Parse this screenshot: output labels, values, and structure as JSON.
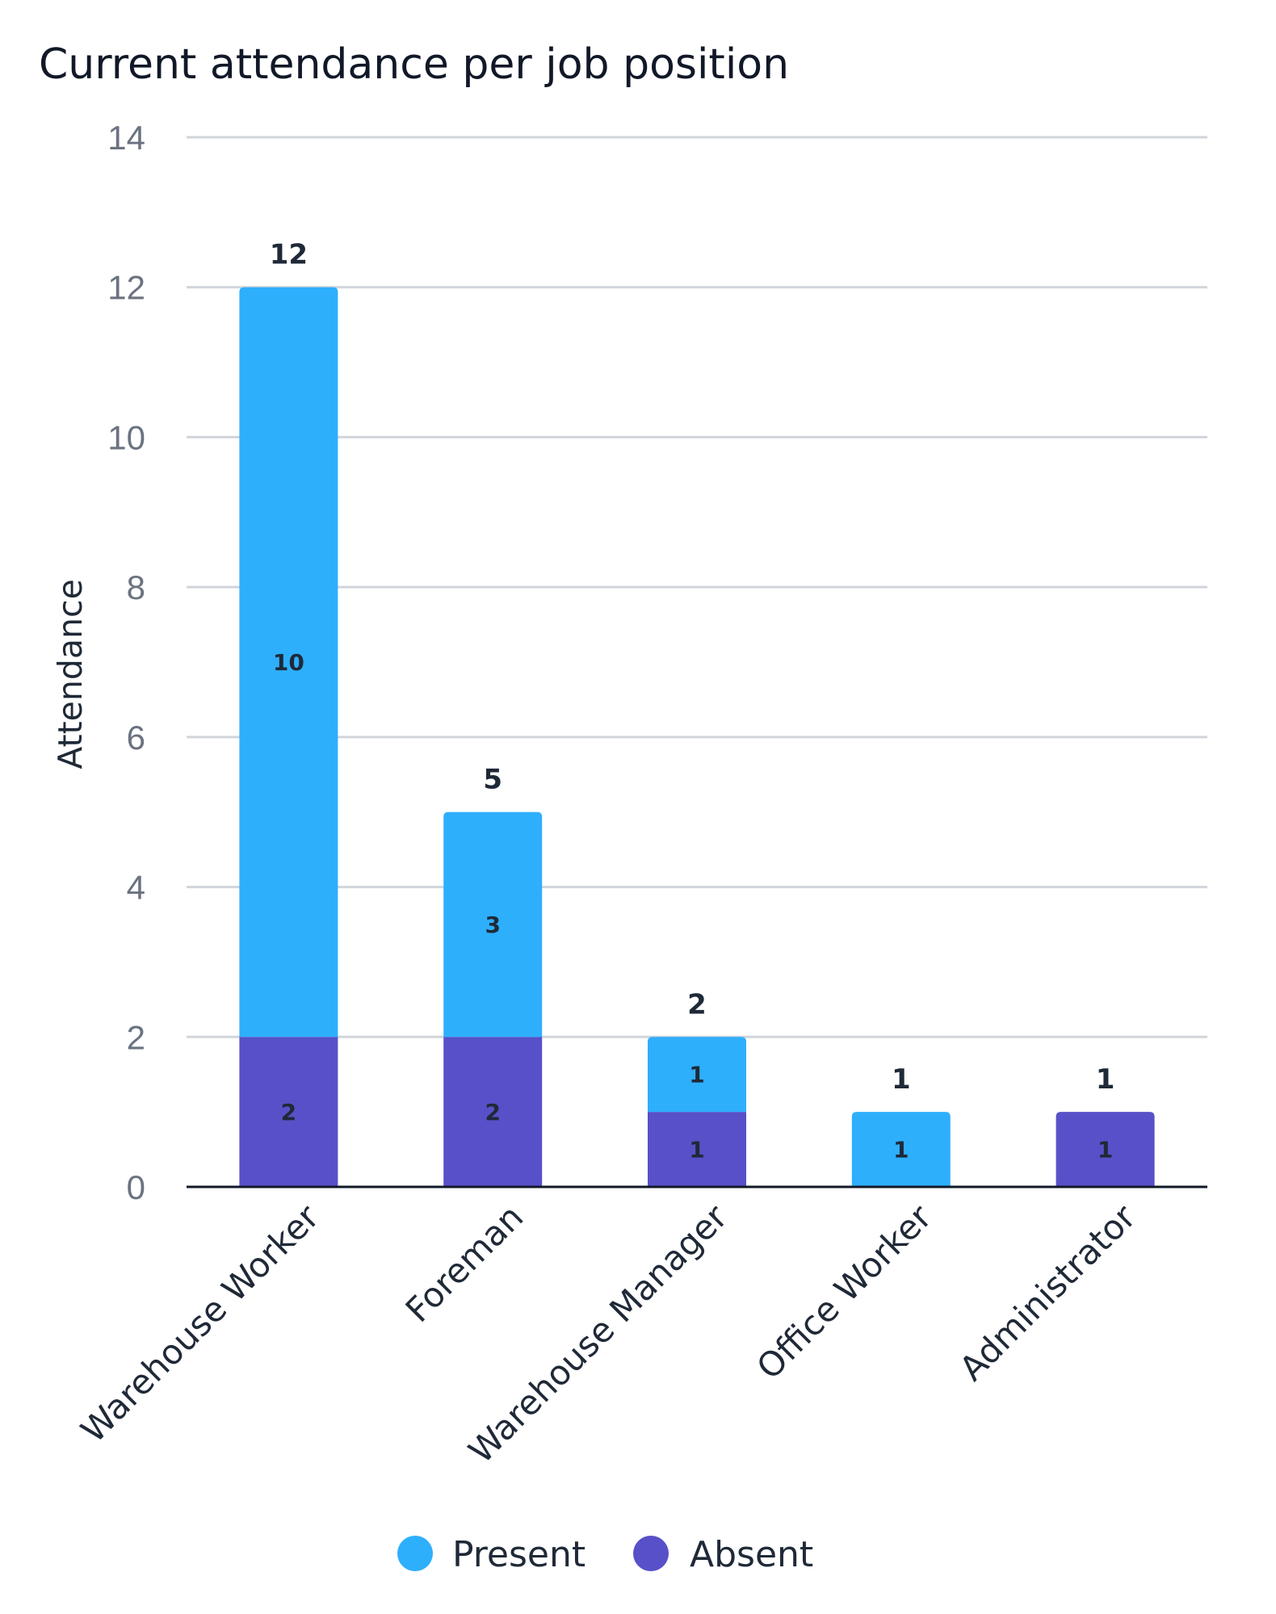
{
  "chart_data": {
    "type": "bar",
    "stacked": true,
    "title": "Current attendance per job position",
    "xlabel": "",
    "ylabel": "Attendance",
    "ylim": [
      0,
      14
    ],
    "yticks": [
      0,
      2,
      4,
      6,
      8,
      10,
      12,
      14
    ],
    "grid": true,
    "legend_position": "bottom",
    "categories": [
      "Warehouse Worker",
      "Foreman",
      "Warehouse Manager",
      "Office Worker",
      "Administrator"
    ],
    "series": [
      {
        "name": "Absent",
        "color": "#5850c8",
        "values": [
          2,
          2,
          1,
          0,
          1
        ],
        "labels": [
          "2",
          "2",
          "1",
          "",
          "1"
        ]
      },
      {
        "name": "Present",
        "color": "#2eaffc",
        "values": [
          10,
          3,
          1,
          1,
          0
        ],
        "labels": [
          "10",
          "3",
          "1",
          "1",
          ""
        ]
      }
    ],
    "totals": [
      12,
      5,
      2,
      1,
      1
    ]
  }
}
